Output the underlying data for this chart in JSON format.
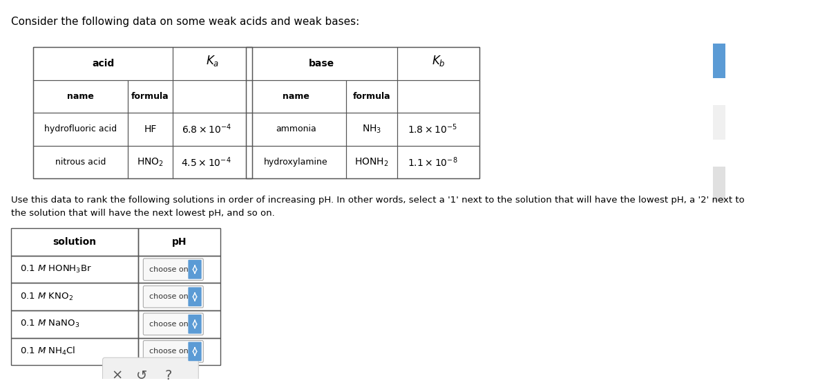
{
  "title": "Consider the following data on some weak acids and weak bases:",
  "background_color": "#ffffff",
  "text_color": "#000000",
  "acid_table": {
    "header": "acid",
    "ka_label": "K_a",
    "col_headers": [
      "name",
      "formula"
    ],
    "rows": [
      [
        "hydrofluoric acid",
        "HF",
        "6.8 × 10",
        "-4"
      ],
      [
        "nitrous acid",
        "HNO₂",
        "4.5 × 10",
        "-4"
      ]
    ]
  },
  "base_table": {
    "header": "base",
    "kb_label": "K_b",
    "col_headers": [
      "name",
      "formula"
    ],
    "rows": [
      [
        "ammonia",
        "NH₃",
        "1.8 × 10",
        "-5"
      ],
      [
        "hydroxylamine",
        "HONH₂",
        "1.1 × 10",
        "-8"
      ]
    ]
  },
  "instruction": "Use this data to rank the following solutions in order of increasing pH. In other words, select a '1' next to the solution that will have the lowest pH, a '2' next to\nthe solution that will have the next lowest pH, and so on.",
  "solution_table": {
    "col_headers": [
      "solution",
      "pH"
    ],
    "rows": [
      "0.1 × HONH₃Br",
      "0.1 × KNO₂",
      "0.1 × NaNO₃",
      "0.1 × NH₄Cl"
    ]
  },
  "choose_one_color": "#5b9bd5",
  "table_border_color": "#555555",
  "header_bg": "#f0f0f0"
}
